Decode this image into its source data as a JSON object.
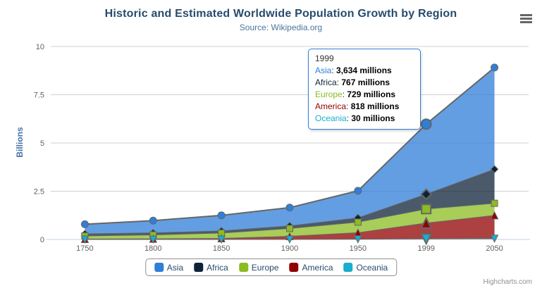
{
  "chart_data": {
    "type": "area",
    "stacking": "normal",
    "title": "Historic and Estimated Worldwide Population Growth by Region",
    "subtitle": "Source: Wikipedia.org",
    "ylabel": "Billions",
    "xlabel": "",
    "unit": "millions",
    "ylim": [
      0,
      10
    ],
    "yticks": [
      0,
      2.5,
      5,
      7.5,
      10
    ],
    "grid": "horizontal",
    "legend_position": "bottom-center",
    "hovered_category": "1999",
    "categories": [
      "1750",
      "1800",
      "1850",
      "1900",
      "1950",
      "1999",
      "2050"
    ],
    "series": [
      {
        "name": "Asia",
        "color": "#2f7ed8",
        "marker": "circle",
        "values_millions": [
          502,
          635,
          809,
          947,
          1402,
          3634,
          5268
        ]
      },
      {
        "name": "Africa",
        "color": "#0d233a",
        "marker": "diamond",
        "values_millions": [
          106,
          107,
          111,
          133,
          221,
          767,
          1766
        ]
      },
      {
        "name": "Europe",
        "color": "#8bbc21",
        "marker": "square",
        "values_millions": [
          163,
          203,
          276,
          408,
          547,
          729,
          628
        ]
      },
      {
        "name": "America",
        "color": "#910000",
        "marker": "triangle",
        "values_millions": [
          18,
          31,
          54,
          156,
          339,
          818,
          1201
        ]
      },
      {
        "name": "Oceania",
        "color": "#1aadce",
        "marker": "triangle-down",
        "values_millions": [
          2,
          2,
          2,
          6,
          13,
          30,
          46
        ]
      }
    ]
  },
  "tooltip": {
    "header": "1999",
    "rows": [
      {
        "name": "Asia",
        "value": "3,634 millions"
      },
      {
        "name": "Africa",
        "value": "767 millions"
      },
      {
        "name": "Europe",
        "value": "729 millions"
      },
      {
        "name": "America",
        "value": "818 millions"
      },
      {
        "name": "Oceania",
        "value": "30 millions"
      }
    ]
  },
  "credits": "Highcharts.com",
  "style_colors": {
    "title": "#274b6d",
    "subtitle": "#4d759e",
    "axis_title": "#4572a7",
    "tick_label": "#606060",
    "gridline": "#d0d0d0",
    "axis_line": "#c0d0e0",
    "series_outline": "#666666",
    "tooltip_border": "#2f7ed8",
    "legend_text": "#274b6d",
    "fill_opacity": "0.75"
  }
}
